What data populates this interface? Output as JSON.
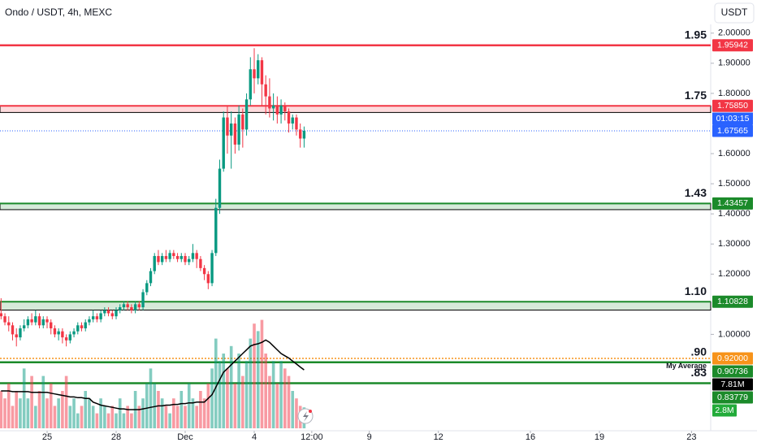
{
  "header": {
    "symbol": "Ondo / USDT, 4h, MEXC",
    "currency_button": "USDT"
  },
  "chart_data": {
    "type": "candlestick",
    "xlim": [
      -12.28,
      173.0
    ],
    "ylim": [
      0.68,
      2.11
    ],
    "xticks": [
      {
        "value": 0,
        "label": "25"
      },
      {
        "value": 18,
        "label": "28"
      },
      {
        "value": 36,
        "label": "Dec"
      },
      {
        "value": 54,
        "label": "4"
      },
      {
        "value": 69,
        "label": "12:00"
      },
      {
        "value": 84,
        "label": "9"
      },
      {
        "value": 102,
        "label": "12"
      },
      {
        "value": 126,
        "label": "16"
      },
      {
        "value": 144,
        "label": "19"
      },
      {
        "value": 168,
        "label": "23"
      }
    ],
    "yticks": [
      {
        "value": 1.0,
        "label": "1.00000"
      },
      {
        "value": 1.2,
        "label": "1.20000"
      },
      {
        "value": 1.3,
        "label": "1.30000"
      },
      {
        "value": 1.4,
        "label": "1.40000"
      },
      {
        "value": 1.5,
        "label": "1.50000"
      },
      {
        "value": 1.6,
        "label": "1.60000"
      },
      {
        "value": 1.8,
        "label": "1.80000"
      },
      {
        "value": 1.9,
        "label": "1.90000"
      },
      {
        "value": 2.0,
        "label": "2.00000"
      }
    ],
    "up_color": "#089981",
    "down_color": "#f23645",
    "x": [
      -12,
      -11,
      -10,
      -9,
      -8,
      -7,
      -6,
      -5,
      -4,
      -3,
      -2,
      -1,
      0,
      1,
      2,
      3,
      4,
      5,
      6,
      7,
      8,
      9,
      10,
      11,
      12,
      13,
      14,
      15,
      16,
      17,
      18,
      19,
      20,
      21,
      22,
      23,
      24,
      25,
      26,
      27,
      28,
      29,
      30,
      31,
      32,
      33,
      34,
      35,
      36,
      37,
      38,
      39,
      40,
      41,
      42,
      43,
      44,
      45,
      46,
      47,
      48,
      49,
      50,
      51,
      52,
      53,
      54,
      55,
      56,
      57,
      58,
      59,
      60,
      61,
      62,
      63,
      64,
      65,
      66,
      67
    ],
    "open": [
      1.07,
      1.06,
      1.04,
      1.03,
      1.0,
      0.99,
      1.02,
      1.03,
      1.05,
      1.04,
      1.06,
      1.03,
      1.05,
      1.04,
      1.02,
      1.0,
      1.01,
      0.99,
      0.98,
      1.0,
      1.01,
      1.03,
      1.02,
      1.04,
      1.05,
      1.06,
      1.05,
      1.07,
      1.08,
      1.07,
      1.06,
      1.08,
      1.09,
      1.1,
      1.09,
      1.08,
      1.1,
      1.09,
      1.14,
      1.17,
      1.21,
      1.26,
      1.24,
      1.26,
      1.25,
      1.27,
      1.26,
      1.25,
      1.26,
      1.24,
      1.25,
      1.27,
      1.25,
      1.22,
      1.2,
      1.17,
      1.27,
      1.42,
      1.55,
      1.72,
      1.66,
      1.7,
      1.63,
      1.73,
      1.68,
      1.78,
      1.88,
      1.85,
      1.91,
      1.83,
      1.79,
      1.75,
      1.76,
      1.73,
      1.76,
      1.74,
      1.7,
      1.72,
      1.68,
      1.65
    ],
    "high": [
      1.12,
      1.07,
      1.06,
      1.04,
      1.02,
      1.03,
      1.05,
      1.06,
      1.07,
      1.08,
      1.07,
      1.06,
      1.06,
      1.05,
      1.03,
      1.02,
      1.02,
      1.0,
      1.01,
      1.02,
      1.04,
      1.04,
      1.05,
      1.06,
      1.08,
      1.07,
      1.08,
      1.09,
      1.09,
      1.08,
      1.09,
      1.1,
      1.11,
      1.11,
      1.1,
      1.11,
      1.11,
      1.15,
      1.18,
      1.22,
      1.27,
      1.28,
      1.27,
      1.28,
      1.28,
      1.28,
      1.27,
      1.27,
      1.27,
      1.26,
      1.3,
      1.28,
      1.26,
      1.23,
      1.21,
      1.28,
      1.45,
      1.58,
      1.74,
      1.76,
      1.74,
      1.72,
      1.76,
      1.75,
      1.8,
      1.92,
      1.95,
      1.93,
      1.92,
      1.86,
      1.85,
      1.8,
      1.79,
      1.78,
      1.77,
      1.75,
      1.73,
      1.73,
      1.7,
      1.69
    ],
    "low": [
      1.05,
      1.03,
      1.01,
      0.98,
      0.96,
      0.98,
      1.01,
      1.02,
      1.03,
      1.03,
      1.02,
      1.02,
      1.02,
      1.0,
      0.99,
      0.98,
      0.97,
      0.96,
      0.97,
      0.99,
      1.0,
      1.01,
      1.01,
      1.03,
      1.04,
      1.04,
      1.04,
      1.06,
      1.06,
      1.05,
      1.05,
      1.07,
      1.08,
      1.08,
      1.07,
      1.07,
      1.08,
      1.08,
      1.13,
      1.16,
      1.2,
      1.23,
      1.23,
      1.24,
      1.24,
      1.25,
      1.24,
      1.24,
      1.23,
      1.23,
      1.24,
      1.22,
      1.21,
      1.18,
      1.15,
      1.16,
      1.26,
      1.4,
      1.54,
      1.6,
      1.55,
      1.6,
      1.61,
      1.62,
      1.66,
      1.76,
      1.8,
      1.83,
      1.76,
      1.73,
      1.72,
      1.71,
      1.7,
      1.7,
      1.71,
      1.67,
      1.68,
      1.66,
      1.62,
      1.62
    ],
    "close": [
      1.06,
      1.04,
      1.03,
      1.0,
      0.99,
      1.02,
      1.03,
      1.05,
      1.04,
      1.06,
      1.03,
      1.05,
      1.04,
      1.02,
      1.0,
      1.01,
      0.99,
      0.98,
      1.0,
      1.01,
      1.03,
      1.02,
      1.04,
      1.05,
      1.06,
      1.05,
      1.07,
      1.08,
      1.07,
      1.06,
      1.08,
      1.09,
      1.1,
      1.09,
      1.08,
      1.1,
      1.09,
      1.14,
      1.17,
      1.21,
      1.26,
      1.24,
      1.26,
      1.25,
      1.27,
      1.26,
      1.25,
      1.26,
      1.24,
      1.25,
      1.27,
      1.25,
      1.22,
      1.2,
      1.17,
      1.27,
      1.42,
      1.55,
      1.72,
      1.66,
      1.7,
      1.63,
      1.73,
      1.68,
      1.78,
      1.88,
      1.85,
      1.91,
      1.83,
      1.79,
      1.75,
      1.76,
      1.73,
      1.76,
      1.74,
      1.7,
      1.72,
      1.68,
      1.65,
      1.67565
    ],
    "volume_ylim": [
      0,
      40
    ],
    "volume": [
      5,
      4,
      6,
      3,
      5,
      4,
      8,
      4,
      7,
      3,
      5,
      7,
      4,
      6,
      3,
      4,
      5,
      7,
      3,
      4,
      2,
      3,
      5,
      4,
      3,
      2,
      4,
      3,
      2,
      3,
      2,
      4,
      2,
      3,
      2,
      5,
      3,
      4,
      6,
      8,
      6,
      5,
      4,
      3,
      2,
      4,
      3,
      5,
      3,
      6,
      4,
      3,
      5,
      4,
      6,
      8,
      12,
      9,
      10,
      8,
      11,
      6,
      10,
      7,
      9,
      12,
      14,
      13,
      14.5,
      10,
      7,
      9,
      6,
      9,
      8,
      7,
      5,
      4,
      3,
      2.8
    ],
    "volume_ma": [
      5.0,
      5.0,
      5.0,
      4.9,
      4.9,
      4.9,
      4.9,
      4.9,
      4.8,
      4.8,
      4.8,
      4.8,
      4.8,
      4.7,
      4.6,
      4.5,
      4.4,
      4.3,
      4.2,
      4.2,
      4.1,
      4.1,
      4.0,
      4.0,
      3.5,
      3.3,
      3.1,
      3.0,
      2.9,
      2.8,
      2.7,
      2.6,
      2.6,
      2.5,
      2.5,
      2.5,
      2.5,
      2.6,
      2.7,
      2.8,
      2.9,
      3.0,
      3.0,
      3.1,
      3.1,
      3.2,
      3.2,
      3.3,
      3.3,
      3.4,
      3.4,
      3.5,
      3.5,
      3.5,
      4.0,
      4.5,
      5.5,
      6.5,
      7.5,
      8.0,
      8.5,
      9.0,
      9.5,
      10.0,
      10.5,
      11.0,
      11.2,
      11.3,
      11.5,
      11.8,
      11.5,
      11.0,
      10.5,
      10.0,
      9.7,
      9.4,
      9.0,
      8.6,
      8.2,
      7.81
    ],
    "volume_ma_color": "#000000",
    "volume_ma_label": "7.81M",
    "volume_label": "2.8M",
    "current_price": 1.67565,
    "current_price_label": "1.67565",
    "countdown": "01:03:15",
    "levels": [
      {
        "value": 1.95942,
        "price_label": "1.95942",
        "note": "1.95",
        "color": "#f23645"
      },
      {
        "value": 1.7585,
        "price_label": "1.75850",
        "note": "1.75",
        "color": "#f23645",
        "zone_bottom": 1.7366
      },
      {
        "value": 1.43457,
        "price_label": "1.43457",
        "note": "1.43",
        "color": "#1b8a2a",
        "zone_bottom": 1.414
      },
      {
        "value": 1.10828,
        "price_label": "1.10828",
        "note": "1.10",
        "color": "#1b8a2a",
        "zone_bottom": 1.0806
      },
      {
        "value": 0.92,
        "price_label": "0.92000",
        "color": "#f7931a",
        "dotted": true
      },
      {
        "value": 0.90736,
        "price_label": "0.90736",
        "note": ".90",
        "color": "#1b8a2a"
      },
      {
        "value": 0.83779,
        "price_label": "0.83779",
        "note": ".83",
        "color": "#1b8a2a"
      }
    ],
    "annotation": "My Average"
  }
}
